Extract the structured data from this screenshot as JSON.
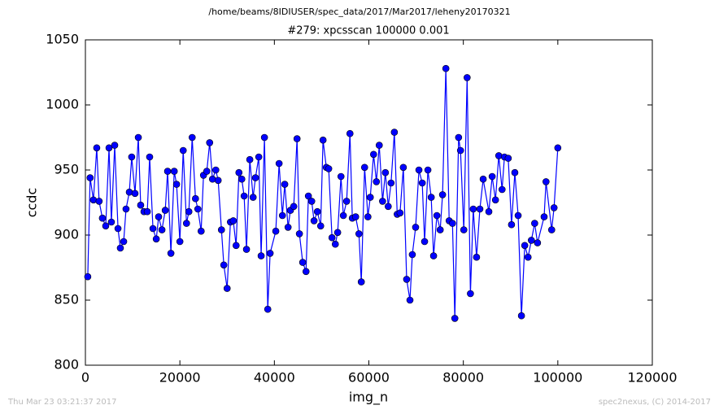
{
  "chart_data": {
    "type": "line",
    "suptitle": "/home/beams/8IDIUSER/spec_data/2017/Mar2017/leheny20170321",
    "title": "#279: xpcsscan 100000 0.001",
    "xlabel": "img_n",
    "ylabel": "ccdc",
    "footer_left": "Thu Mar 23 03:21:37 2017",
    "footer_right": "spec2nexus, (C) 2014-2017",
    "xlim": [
      0,
      120000
    ],
    "xticks": [
      0,
      20000,
      40000,
      60000,
      80000,
      100000,
      120000
    ],
    "ylim": [
      800,
      1050
    ],
    "yticks": [
      800,
      850,
      900,
      950,
      1000,
      1050
    ],
    "x": [
      500,
      1000,
      1700,
      2400,
      2900,
      3600,
      4300,
      5000,
      5500,
      6200,
      6900,
      7400,
      8100,
      8600,
      9300,
      9800,
      10500,
      11200,
      11700,
      12400,
      13100,
      13600,
      14300,
      15000,
      15500,
      16200,
      16900,
      17400,
      18100,
      18800,
      19300,
      20000,
      20700,
      21400,
      21900,
      22600,
      23300,
      23800,
      24500,
      25000,
      25700,
      26300,
      26900,
      27600,
      28100,
      28800,
      29300,
      30000,
      30700,
      31300,
      31900,
      32500,
      33100,
      33600,
      34100,
      34800,
      35500,
      36000,
      36700,
      37200,
      37900,
      38600,
      39100,
      40300,
      41000,
      41700,
      42200,
      42900,
      43400,
      44100,
      44800,
      45300,
      46000,
      46700,
      47200,
      47900,
      48400,
      49100,
      49800,
      50300,
      51000,
      51500,
      52200,
      52900,
      53400,
      54100,
      54600,
      55300,
      56000,
      56500,
      57200,
      57900,
      58400,
      59100,
      59800,
      60300,
      61000,
      61600,
      62200,
      62900,
      63500,
      64100,
      64700,
      65400,
      66000,
      66600,
      67300,
      68000,
      68700,
      69200,
      69900,
      70600,
      71300,
      71800,
      72500,
      73200,
      73700,
      74400,
      75100,
      75600,
      76300,
      77000,
      77700,
      78200,
      79000,
      79400,
      80100,
      80800,
      81500,
      82100,
      82800,
      83500,
      84200,
      85400,
      86100,
      86800,
      87500,
      88200,
      88700,
      89500,
      90200,
      90900,
      91600,
      92300,
      93000,
      93700,
      94400,
      95100,
      95700,
      97100,
      97500,
      98700,
      99200,
      100000
    ],
    "series": [
      {
        "name": "ccdc",
        "color": "#0000ff",
        "values": [
          868,
          944,
          927,
          967,
          926,
          913,
          907,
          967,
          910,
          969,
          905,
          890,
          895,
          920,
          933,
          960,
          932,
          975,
          923,
          918,
          918,
          960,
          905,
          897,
          914,
          904,
          919,
          949,
          886,
          949,
          939,
          895,
          965,
          909,
          918,
          975,
          928,
          920,
          903,
          946,
          949,
          971,
          943,
          950,
          942,
          904,
          877,
          859,
          910,
          911,
          892,
          948,
          943,
          930,
          889,
          958,
          929,
          944,
          960,
          884,
          975,
          843,
          886,
          903,
          955,
          915,
          939,
          906,
          919,
          922,
          974,
          901,
          879,
          872,
          930,
          926,
          911,
          918,
          907,
          973,
          952,
          951,
          898,
          893,
          902,
          945,
          915,
          926,
          978,
          913,
          914,
          901,
          864,
          952,
          914,
          929,
          962,
          941,
          969,
          926,
          948,
          922,
          940,
          979,
          916,
          917,
          952,
          866,
          850,
          885,
          906,
          950,
          940,
          895,
          950,
          929,
          884,
          915,
          904,
          931,
          1028,
          911,
          909,
          836,
          975,
          965,
          904,
          1021,
          855,
          920,
          883,
          920,
          943,
          918,
          945,
          927,
          961,
          935,
          960,
          959,
          908,
          948,
          915,
          838,
          892,
          883,
          896,
          909,
          894,
          914,
          941,
          904,
          921,
          967
        ]
      }
    ]
  }
}
